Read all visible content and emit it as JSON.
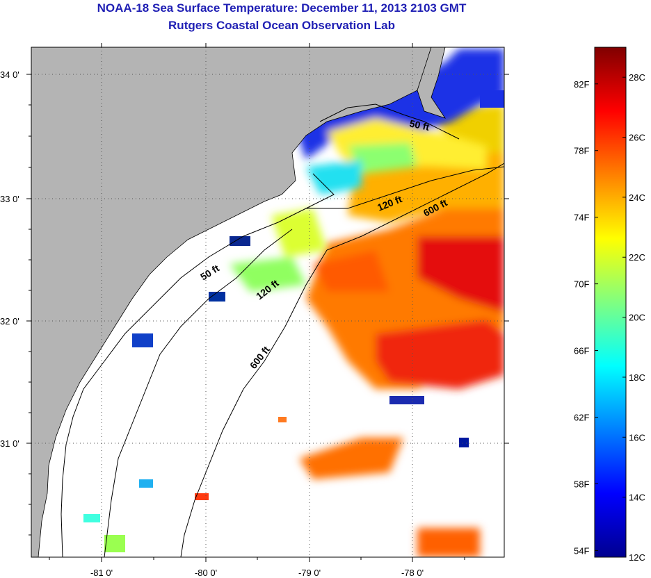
{
  "header": {
    "title": "NOAA-18 Sea Surface Temperature:  December 11, 2013 2103 GMT",
    "subtitle": "Rutgers Coastal Ocean Observation Lab"
  },
  "map": {
    "lat_labels": [
      "34 0'",
      "33 0'",
      "32 0'",
      "31 0'"
    ],
    "lon_labels": [
      "-81 0'",
      "-80 0'",
      "-79 0'",
      "-78 0'"
    ],
    "contour_labels": [
      {
        "text": "50 ft",
        "id": "50-ft-north"
      },
      {
        "text": "120 ft",
        "id": "120-ft-north"
      },
      {
        "text": "600 ft",
        "id": "600-ft-north"
      },
      {
        "text": "50 ft",
        "id": "50-ft-south"
      },
      {
        "text": "120 ft",
        "id": "120-ft-south"
      },
      {
        "text": "600 ft",
        "id": "600-ft-south"
      }
    ],
    "colors": {
      "land": "#b4b4b4",
      "ocean_no_data": "#ffffff"
    }
  },
  "colorbar": {
    "fahrenheit_labels": [
      "82F",
      "78F",
      "74F",
      "70F",
      "66F",
      "62F",
      "58F",
      "54F"
    ],
    "celsius_labels": [
      "28C",
      "26C",
      "24C",
      "22C",
      "20C",
      "18C",
      "16C",
      "14C",
      "12C"
    ],
    "range_c": [
      12,
      29
    ],
    "colormap": [
      "#00008f",
      "#0000ff",
      "#0080ff",
      "#00ffff",
      "#80ff80",
      "#ffff00",
      "#ff8000",
      "#ff0000",
      "#800000"
    ]
  }
}
